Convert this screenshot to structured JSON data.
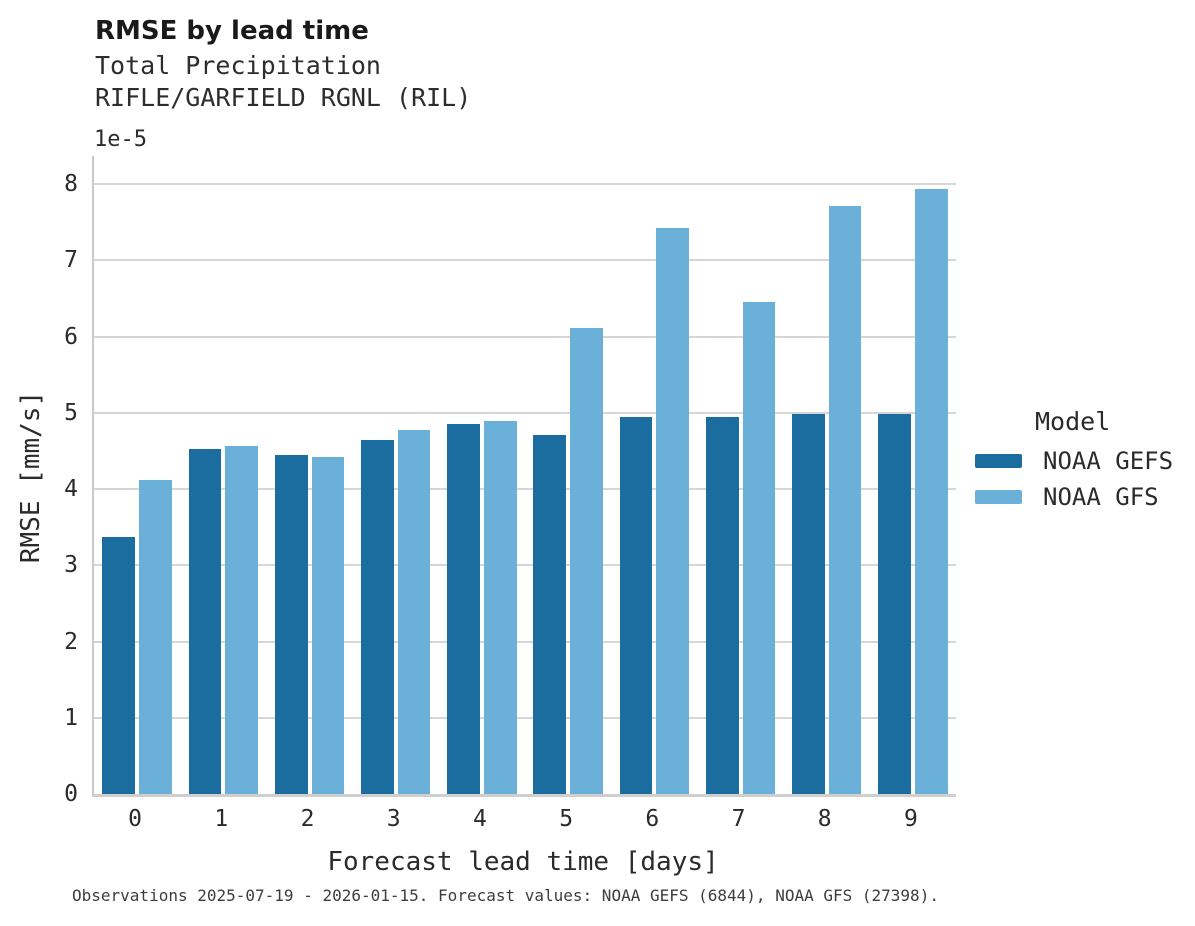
{
  "chart_data": {
    "type": "bar",
    "title": "RMSE by lead time",
    "subtitle_line1": "Total Precipitation",
    "subtitle_line2": "RIFLE/GARFIELD RGNL (RIL)",
    "axis_offset_label": "1e-5",
    "xlabel": "Forecast lead time [days]",
    "ylabel": "RMSE [mm/s]",
    "value_scale": "1e-5",
    "categories": [
      "0",
      "1",
      "2",
      "3",
      "4",
      "5",
      "6",
      "7",
      "8",
      "9"
    ],
    "series": [
      {
        "name": "NOAA GEFS",
        "color": "#1a6d9e",
        "values": [
          3.37,
          4.52,
          4.45,
          4.64,
          4.85,
          4.71,
          4.95,
          4.95,
          4.98,
          4.99
        ]
      },
      {
        "name": "NOAA GFS",
        "color": "#6bb0d8",
        "values": [
          4.12,
          4.56,
          4.42,
          4.78,
          4.89,
          6.11,
          7.43,
          6.46,
          7.71,
          7.94
        ]
      }
    ],
    "yticks": [
      "0",
      "1",
      "2",
      "3",
      "4",
      "5",
      "6",
      "7",
      "8"
    ],
    "ylim": [
      0,
      8.37
    ],
    "grid": "horizontal",
    "legend": {
      "title": "Model",
      "position": "right"
    },
    "caption": "Observations 2025-07-19 - 2026-01-15. Forecast values: NOAA GEFS (6844), NOAA GFS (27398)."
  }
}
